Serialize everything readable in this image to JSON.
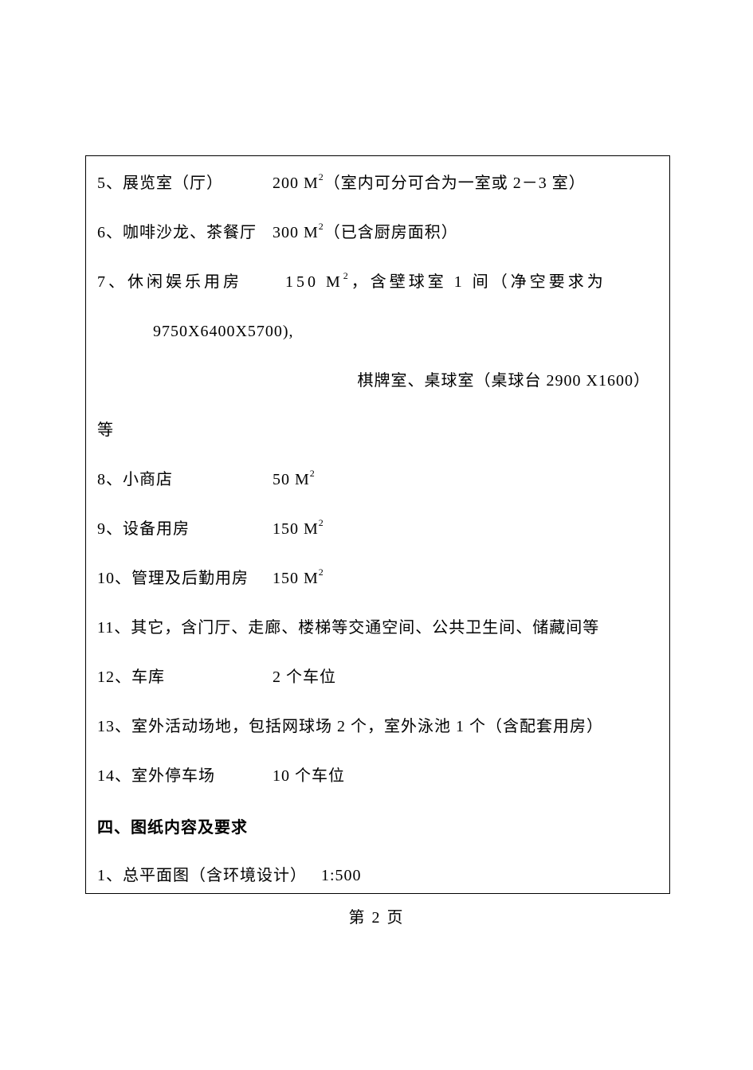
{
  "page": {
    "border_color": "#000000",
    "background_color": "#ffffff",
    "text_color": "#000000",
    "font_family": "SimSun",
    "body_fontsize": 20,
    "superscript_fontsize": 12,
    "page_number": "第 2 页"
  },
  "lines": {
    "item5_label": "5、展览室（厅）",
    "item5_value": "200 M",
    "item5_sup": "2",
    "item5_note": "（室内可分可合为一室或 2－3 室）",
    "item6_label": "6、咖啡沙龙、茶餐厅",
    "item6_value": "300 M",
    "item6_sup": "2",
    "item6_note": "（已含厨房面积）",
    "item7_label": "7、休闲娱乐用房",
    "item7_value": "150 M",
    "item7_sup": "2",
    "item7_note_a": "，含壁球室 1 间（净空要求为",
    "item7_sub1": "9750X6400X5700),",
    "item7_sub2": "棋牌室、桌球室（桌球台 2900 X1600）",
    "item7_deng": "等",
    "item8_label": "8、小商店",
    "item8_value": "50 M",
    "item8_sup": "2",
    "item9_label": "9、设备用房",
    "item9_value": "150 M",
    "item9_sup": "2",
    "item10_label": "10、管理及后勤用房",
    "item10_value": "150 M",
    "item10_sup": "2",
    "item11_full": "11、其它，含门厅、走廊、楼梯等交通空间、公共卫生间、储藏间等",
    "item12_label": "12、车库",
    "item12_value": "2 个车位",
    "item13_full": "13、室外活动场地，包括网球场 2 个，室外泳池 1 个（含配套用房）",
    "item14_label": "14、室外停车场",
    "item14_value": "10 个车位",
    "section4_heading": "四、图纸内容及要求",
    "section4_item1_label": "1、总平面图（含环境设计）",
    "section4_item1_value": "1:500"
  }
}
